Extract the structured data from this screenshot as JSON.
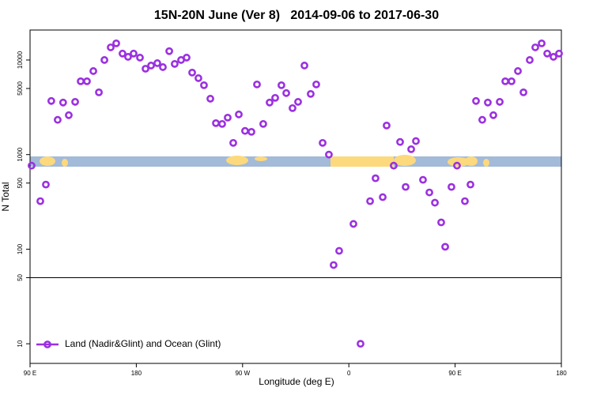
{
  "chart_data": {
    "type": "scatter",
    "title": "15N-20N June (Ver 8)   2014-09-06 to 2017-06-30",
    "xlabel": "Longitude (deg E)",
    "ylabel": "N Total",
    "log_y": true,
    "hline": 50,
    "legend": "bottom-left",
    "xlim": [
      90,
      540
    ],
    "ylim": [
      6.2,
      20750
    ],
    "xticks": [
      {
        "value": 90,
        "label": "90 E"
      },
      180,
      {
        "value": 270,
        "label": "90 W"
      },
      {
        "value": 360,
        "label": "0"
      },
      {
        "value": 450,
        "label": "90 E"
      },
      {
        "value": 540,
        "label": "180"
      }
    ],
    "yticks": [
      10,
      50,
      100,
      500,
      1000,
      5000,
      10000
    ],
    "series": [
      {
        "name": "Land (Nadir&Glint) and Ocean (Glint)",
        "color": "#9b30e0",
        "x": [
          91.3,
          98.7,
          103.4,
          108,
          113.4,
          118,
          122.8,
          128.2,
          132.9,
          138.2,
          143.6,
          148.3,
          153,
          158.3,
          163,
          168.3,
          173,
          177.7,
          183.1,
          187.8,
          192.5,
          197.8,
          202.5,
          207.9,
          212.5,
          217.9,
          222.6,
          227.3,
          232.6,
          237.3,
          242.7,
          247.4,
          252.7,
          257.4,
          262.1,
          266.8,
          272.1,
          277.5,
          282.2,
          287.5,
          292.9,
          297.6,
          302.9,
          307,
          312.3,
          317,
          322.4,
          327.7,
          332.4,
          337.8,
          343.1,
          347.1,
          351.8,
          363.9,
          369.9,
          378,
          382.6,
          388.7,
          392,
          398,
          403.4,
          408.1,
          412.8,
          416.8,
          422.8,
          428.2,
          432.9,
          438.2,
          441.6,
          446.9,
          451.6,
          458.3,
          463,
          467.7,
          473,
          477.7,
          482.4,
          487.8,
          492.5,
          497.8,
          503.2,
          507.9,
          513.2,
          517.9,
          523.3,
          528,
          533.3,
          538
        ],
        "values": [
          764,
          322,
          482,
          3690,
          2330,
          3550,
          2610,
          3610,
          5960,
          5960,
          7640,
          4550,
          10000,
          13600,
          15000,
          11700,
          10800,
          11700,
          10600,
          8090,
          8740,
          9260,
          8410,
          12400,
          9090,
          10000,
          10600,
          7360,
          6430,
          5410,
          3900,
          2150,
          2110,
          2460,
          1330,
          2660,
          1780,
          1740,
          5520,
          2110,
          3550,
          3980,
          5410,
          4470,
          3100,
          3610,
          8740,
          4380,
          5520,
          1330,
          1000,
          68,
          96,
          185,
          10,
          322,
          562,
          355,
          2030,
          764,
          1360,
          455,
          1140,
          1390,
          541,
          398,
          310,
          192,
          106,
          455,
          764,
          322,
          482,
          3690,
          2330,
          3550,
          2610,
          3610,
          5960,
          5960,
          7640,
          4550,
          10000,
          13600,
          15000,
          11700,
          10800,
          11700
        ]
      }
    ]
  }
}
